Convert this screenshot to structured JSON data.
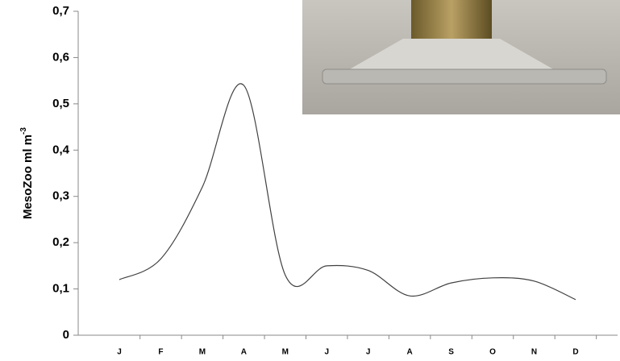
{
  "chart_data": {
    "type": "line",
    "y_label": "MesoZoo ml m",
    "y_label_sup": "-3",
    "categories": [
      "J",
      "F",
      "M",
      "A",
      "M",
      "J",
      "J",
      "A",
      "S",
      "O",
      "N",
      "D"
    ],
    "values": [
      0.12,
      0.165,
      0.32,
      0.54,
      0.13,
      0.15,
      0.14,
      0.085,
      0.113,
      0.124,
      0.117,
      0.077
    ],
    "color": "#404040",
    "ylim": [
      0,
      0.7
    ],
    "yticks": [
      0,
      {
        "value": 0.1,
        "label": "0,1"
      },
      {
        "value": 0.2,
        "label": "0,2"
      },
      {
        "value": 0.3,
        "label": "0,3"
      },
      {
        "value": 0.4,
        "label": "0,4"
      },
      {
        "value": 0.5,
        "label": "0,5"
      },
      {
        "value": 0.6,
        "label": "0,6"
      },
      {
        "value": 0.7,
        "label": "0,7"
      }
    ]
  }
}
